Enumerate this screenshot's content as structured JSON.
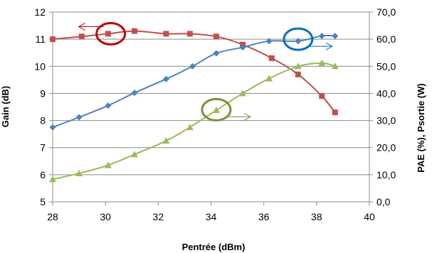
{
  "chart_data": {
    "type": "line",
    "title": "",
    "xlabel": "Pentrée (dBm)",
    "ylabel_left": "Gain (dB)",
    "ylabel_right": "PAE (%), Psortie (W)",
    "xlim": [
      28,
      40
    ],
    "xticks": [
      "28",
      "30",
      "32",
      "34",
      "36",
      "38",
      "40"
    ],
    "ylim_left": [
      5,
      12
    ],
    "yticks_left": [
      "5",
      "6",
      "7",
      "8",
      "9",
      "10",
      "11",
      "12"
    ],
    "ylim_right": [
      0,
      70
    ],
    "yticks_right": [
      "0,0",
      "10,0",
      "20,0",
      "30,0",
      "40,0",
      "50,0",
      "60,0",
      "70,0"
    ],
    "grid": "horizontal",
    "legend": "none",
    "series": [
      {
        "axis": "left",
        "color": "#C0504D",
        "marker": "square",
        "points": [
          [
            28.0,
            11.0
          ],
          [
            29.1,
            11.1
          ],
          [
            30.1,
            11.2
          ],
          [
            31.1,
            11.3
          ],
          [
            32.3,
            11.2
          ],
          [
            33.2,
            11.2
          ],
          [
            34.2,
            11.1
          ],
          [
            35.2,
            10.8
          ],
          [
            36.3,
            10.3
          ],
          [
            37.3,
            9.7
          ],
          [
            38.2,
            8.9
          ],
          [
            38.7,
            8.3
          ]
        ]
      },
      {
        "axis": "right",
        "color": "#4F81BD",
        "marker": "diamond",
        "points": [
          [
            28.0,
            27.5
          ],
          [
            29.0,
            31.2
          ],
          [
            30.1,
            35.5
          ],
          [
            31.1,
            40.2
          ],
          [
            32.3,
            45.3
          ],
          [
            33.3,
            50.0
          ],
          [
            34.2,
            54.8
          ],
          [
            35.2,
            57.0
          ],
          [
            36.2,
            59.3
          ],
          [
            37.3,
            59.3
          ],
          [
            38.2,
            61.2
          ],
          [
            38.7,
            61.2
          ]
        ]
      },
      {
        "axis": "right",
        "color": "#9BBB59",
        "marker": "triangle",
        "points": [
          [
            28.0,
            8.3
          ],
          [
            29.0,
            10.5
          ],
          [
            30.1,
            13.5
          ],
          [
            31.1,
            17.5
          ],
          [
            32.3,
            22.5
          ],
          [
            33.2,
            27.5
          ],
          [
            34.2,
            33.8
          ],
          [
            35.2,
            40.0
          ],
          [
            36.2,
            45.5
          ],
          [
            37.3,
            50.0
          ],
          [
            38.2,
            51.2
          ],
          [
            38.7,
            50.0
          ]
        ]
      }
    ],
    "annotations": [
      {
        "shape": "ellipse",
        "color": "#C00000",
        "cx": 30.2,
        "cy_axis": "left",
        "cy": 11.2,
        "arrow": "left"
      },
      {
        "shape": "ellipse",
        "color": "#0070C0",
        "cx": 37.3,
        "cy_axis": "left",
        "cy": 11.0,
        "arrow": "right"
      },
      {
        "shape": "ellipse",
        "color": "#77933C",
        "cx": 34.2,
        "cy_axis": "left",
        "cy": 8.4,
        "arrow": "right"
      }
    ]
  }
}
